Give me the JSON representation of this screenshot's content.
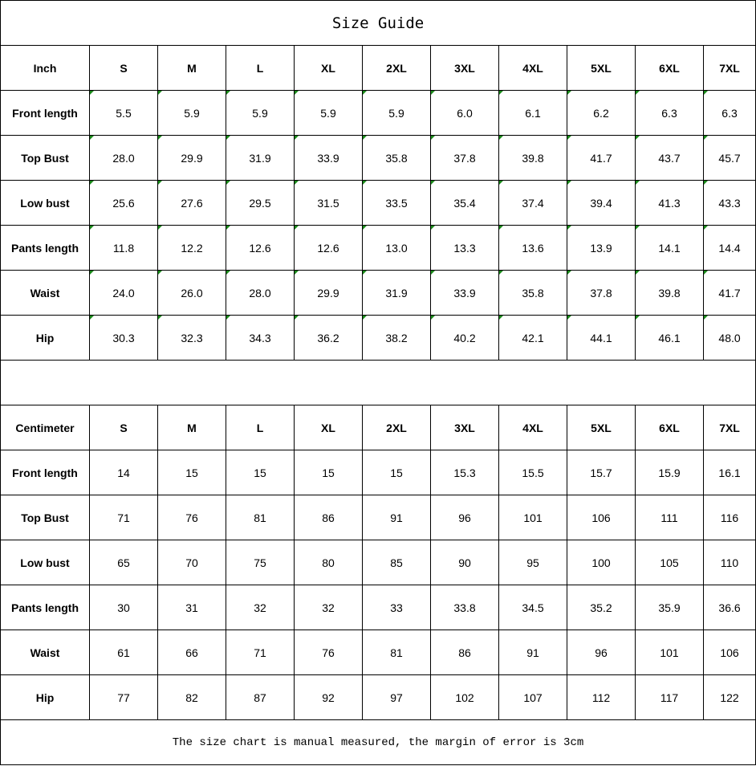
{
  "title": "Size Guide",
  "sizes": [
    "S",
    "M",
    "L",
    "XL",
    "2XL",
    "3XL",
    "4XL",
    "5XL",
    "6XL",
    "7XL"
  ],
  "inch": {
    "unit_label": "Inch",
    "rows": [
      {
        "label": "Front length",
        "values": [
          "5.5",
          "5.9",
          "5.9",
          "5.9",
          "5.9",
          "6.0",
          "6.1",
          "6.2",
          "6.3",
          "6.3"
        ]
      },
      {
        "label": "Top Bust",
        "values": [
          "28.0",
          "29.9",
          "31.9",
          "33.9",
          "35.8",
          "37.8",
          "39.8",
          "41.7",
          "43.7",
          "45.7"
        ]
      },
      {
        "label": "Low bust",
        "values": [
          "25.6",
          "27.6",
          "29.5",
          "31.5",
          "33.5",
          "35.4",
          "37.4",
          "39.4",
          "41.3",
          "43.3"
        ]
      },
      {
        "label": "Pants length",
        "values": [
          "11.8",
          "12.2",
          "12.6",
          "12.6",
          "13.0",
          "13.3",
          "13.6",
          "13.9",
          "14.1",
          "14.4"
        ]
      },
      {
        "label": "Waist",
        "values": [
          "24.0",
          "26.0",
          "28.0",
          "29.9",
          "31.9",
          "33.9",
          "35.8",
          "37.8",
          "39.8",
          "41.7"
        ]
      },
      {
        "label": "Hip",
        "values": [
          "30.3",
          "32.3",
          "34.3",
          "36.2",
          "38.2",
          "40.2",
          "42.1",
          "44.1",
          "46.1",
          "48.0"
        ]
      }
    ]
  },
  "centimeter": {
    "unit_label": "Centimeter",
    "rows": [
      {
        "label": "Front length",
        "values": [
          "14",
          "15",
          "15",
          "15",
          "15",
          "15.3",
          "15.5",
          "15.7",
          "15.9",
          "16.1"
        ]
      },
      {
        "label": "Top Bust",
        "values": [
          "71",
          "76",
          "81",
          "86",
          "91",
          "96",
          "101",
          "106",
          "111",
          "116"
        ]
      },
      {
        "label": "Low bust",
        "values": [
          "65",
          "70",
          "75",
          "80",
          "85",
          "90",
          "95",
          "100",
          "105",
          "110"
        ]
      },
      {
        "label": "Pants length",
        "values": [
          "30",
          "31",
          "32",
          "32",
          "33",
          "33.8",
          "34.5",
          "35.2",
          "35.9",
          "36.6"
        ]
      },
      {
        "label": "Waist",
        "values": [
          "61",
          "66",
          "71",
          "76",
          "81",
          "86",
          "91",
          "96",
          "101",
          "106"
        ]
      },
      {
        "label": "Hip",
        "values": [
          "77",
          "82",
          "87",
          "92",
          "97",
          "102",
          "107",
          "112",
          "117",
          "122"
        ]
      }
    ]
  },
  "footnote": "The size chart is manual measured, the margin of error is 3cm",
  "colors": {
    "error_indicator": "#1a8a1a",
    "grid": "#000000"
  }
}
